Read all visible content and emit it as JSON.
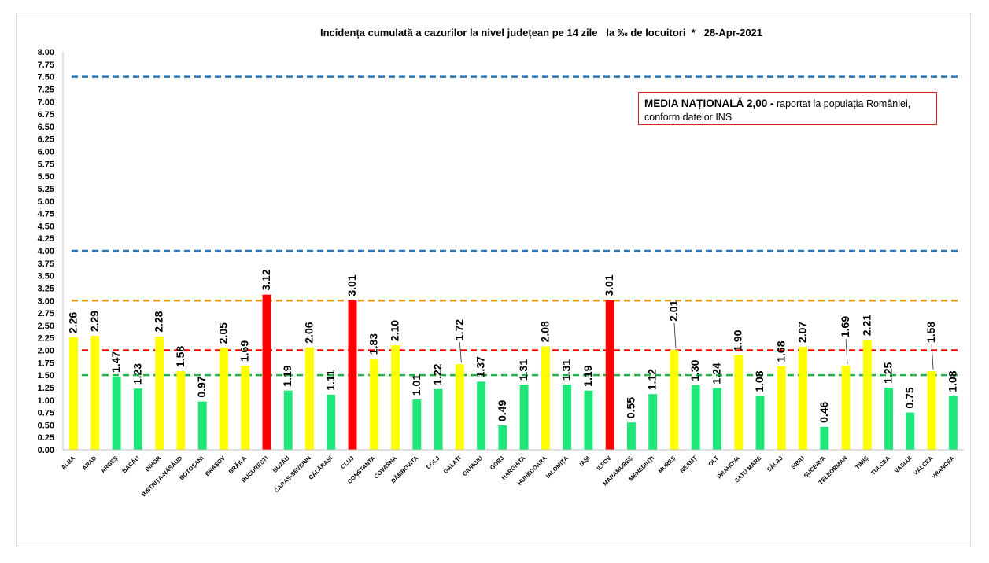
{
  "chart_data": {
    "type": "bar",
    "title": "Incidența cumulată a cazurilor la nivel județean pe 14 zile   la ‰ de locuitori  *   28-Apr-2021",
    "xlabel": "",
    "ylabel": "",
    "ylim": [
      0,
      8
    ],
    "ytick_labels": [
      "0.00",
      "0.25",
      "0.50",
      "0.75",
      "1.00",
      "1.25",
      "1.50",
      "1.75",
      "2.00",
      "2.25",
      "2.50",
      "2.75",
      "3.00",
      "3.25",
      "3.50",
      "3.75",
      "4.00",
      "4.25",
      "4.50",
      "4.75",
      "5.00",
      "5.25",
      "5.50",
      "5.75",
      "6.00",
      "6.25",
      "6.50",
      "6.75",
      "7.00",
      "7.25",
      "7.50",
      "7.75",
      "8.00"
    ],
    "grid": false,
    "categories": [
      "ALBA",
      "ARAD",
      "ARGEȘ",
      "BACĂU",
      "BIHOR",
      "BISTRIȚA-NĂSĂUD",
      "BOTOȘANI",
      "BRAȘOV",
      "BRĂILA",
      "BUCUREȘTI",
      "BUZĂU",
      "CARAȘ-SEVERIN",
      "CĂLĂRAȘI",
      "CLUJ",
      "CONSTANTA",
      "COVASNA",
      "DÂMBOVITA",
      "DOLJ",
      "GALAȚI",
      "GIURGIU",
      "GORJ",
      "HARGHITA",
      "HUNEDOARA",
      "IALOMIȚA",
      "IAȘI",
      "ILFOV",
      "MARAMUREȘ",
      "MEHEDINȚI",
      "MUREȘ",
      "NEAMȚ",
      "OLT",
      "PRAHOVA",
      "SATU MARE",
      "SĂLAJ",
      "SIBIU",
      "SUCEAVA",
      "TELEORMAN",
      "TIMIȘ",
      "TULCEA",
      "VASLUI",
      "VÂLCEA",
      "VRANCEA"
    ],
    "values": [
      2.26,
      2.29,
      1.47,
      1.23,
      2.28,
      1.58,
      0.97,
      2.05,
      1.69,
      3.12,
      1.19,
      2.06,
      1.11,
      3.01,
      1.83,
      2.1,
      1.01,
      1.22,
      1.72,
      1.37,
      0.49,
      1.31,
      2.08,
      1.31,
      1.19,
      3.01,
      0.55,
      1.12,
      2.01,
      1.3,
      1.24,
      1.9,
      1.08,
      1.68,
      2.07,
      0.46,
      1.69,
      2.21,
      1.25,
      0.75,
      1.58,
      1.08
    ],
    "value_labels": [
      "2.26",
      "2.29",
      "1.47",
      "1.23",
      "2.28",
      "1.58",
      "0.97",
      "2.05",
      "1.69",
      "3.12",
      "1.19",
      "2.06",
      "1.11",
      "3.01",
      "1.83",
      "2.10",
      "1.01",
      "1.22",
      "1.72",
      "1.37",
      "0.49",
      "1.31",
      "2.08",
      "1.31",
      "1.19",
      "3.01",
      "0.55",
      "1.12",
      "2.01",
      "1.30",
      "1.24",
      "1.90",
      "1.08",
      "1.68",
      "2.07",
      "0.46",
      "1.69",
      "2.21",
      "1.25",
      "0.75",
      "1.58",
      "1.08"
    ],
    "reference_lines": [
      {
        "value": 7.5,
        "color": "#2e75b6"
      },
      {
        "value": 4.0,
        "color": "#2e75b6"
      },
      {
        "value": 3.0,
        "color": "#e8a317"
      },
      {
        "value": 2.0,
        "color": "#ff0000"
      },
      {
        "value": 1.5,
        "color": "#22b14c"
      }
    ],
    "color_rules": {
      "low": "#1ee678",
      "mid": "#ffff00",
      "high": "#ff0000",
      "mid_threshold": 1.5,
      "high_threshold": 3.0
    }
  },
  "info_box": {
    "strong": "MEDIA NAȚIONALĂ 2,00 -",
    "rest": " raportat la populația României,",
    "line2": "conform datelor INS"
  }
}
